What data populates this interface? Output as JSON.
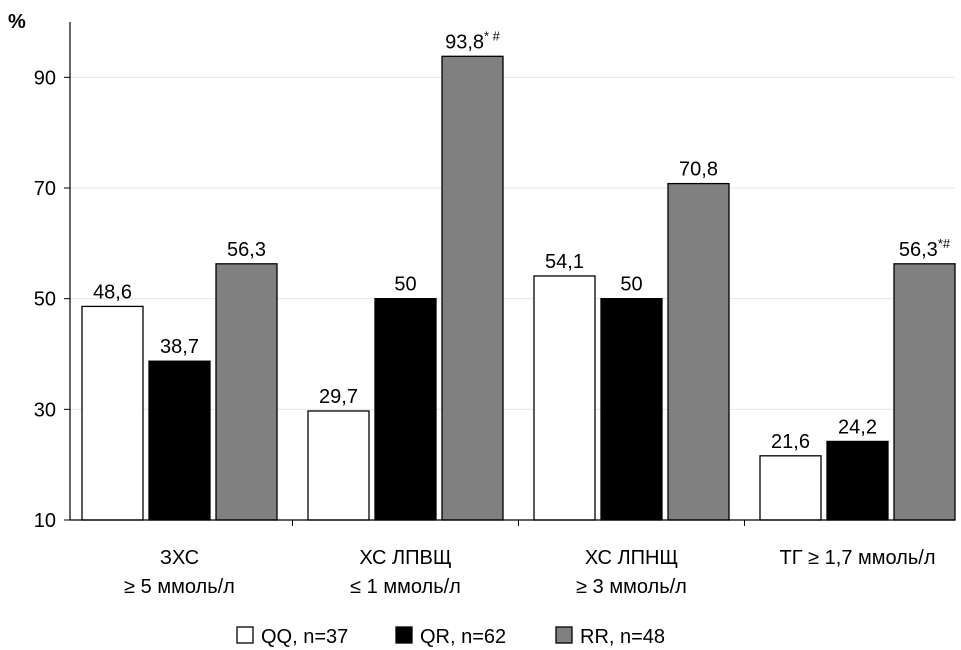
{
  "chart_data": {
    "type": "bar",
    "ylabel": "%",
    "ylim": [
      10,
      100
    ],
    "yticks": [
      10,
      30,
      50,
      70,
      90
    ],
    "grid": true,
    "categories": [
      {
        "line1": "ЗХС",
        "line2": "≥ 5 ммоль/л"
      },
      {
        "line1": "ХС ЛПВЩ",
        "line2": "≤ 1 ммоль/л"
      },
      {
        "line1": "ХС ЛПНЩ",
        "line2": "≥ 3 ммоль/л"
      },
      {
        "line1": "ТГ ≥ 1,7 ммоль/л",
        "line2": ""
      }
    ],
    "series": [
      {
        "name": "QQ, n=37",
        "color": "#ffffff",
        "values": [
          48.6,
          29.7,
          54.1,
          21.6
        ],
        "labels": [
          "48,6",
          "29,7",
          "54,1",
          "21,6"
        ],
        "marks": [
          "",
          "",
          "",
          ""
        ]
      },
      {
        "name": "QR, n=62",
        "color": "#000000",
        "values": [
          38.7,
          50,
          50,
          24.2
        ],
        "labels": [
          "38,7",
          "50",
          "50",
          "24,2"
        ],
        "marks": [
          "",
          "",
          "",
          ""
        ]
      },
      {
        "name": "RR, n=48",
        "color": "#808080",
        "values": [
          56.3,
          93.8,
          70.8,
          56.3
        ],
        "labels": [
          "56,3",
          "93,8",
          "70,8",
          "56,3"
        ],
        "marks": [
          "",
          "* #",
          "",
          "*#"
        ]
      }
    ],
    "legend_position": "bottom"
  }
}
